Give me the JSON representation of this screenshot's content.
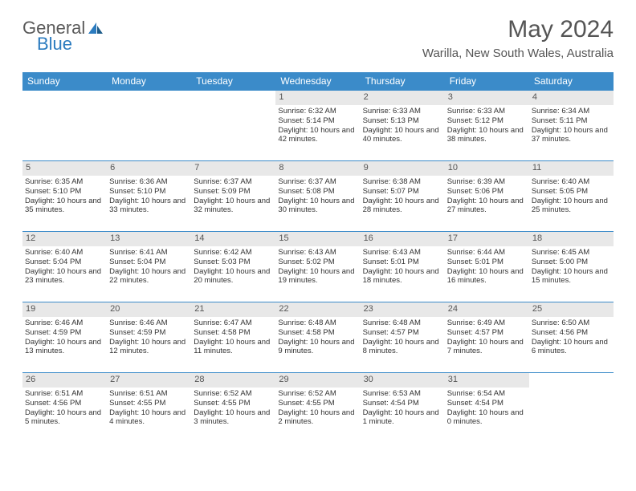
{
  "logo": {
    "text1": "General",
    "text2": "Blue"
  },
  "header": {
    "month": "May 2024",
    "location": "Warilla, New South Wales, Australia"
  },
  "colors": {
    "headerBlue": "#3b8bc9",
    "dayBg": "#e8e8e8",
    "logoBlue": "#2b7bbf"
  },
  "dayNames": [
    "Sunday",
    "Monday",
    "Tuesday",
    "Wednesday",
    "Thursday",
    "Friday",
    "Saturday"
  ],
  "firstWeekday": 3,
  "daysInMonth": 31,
  "days": {
    "1": {
      "sunrise": "6:32 AM",
      "sunset": "5:14 PM",
      "daylight": "10 hours and 42 minutes."
    },
    "2": {
      "sunrise": "6:33 AM",
      "sunset": "5:13 PM",
      "daylight": "10 hours and 40 minutes."
    },
    "3": {
      "sunrise": "6:33 AM",
      "sunset": "5:12 PM",
      "daylight": "10 hours and 38 minutes."
    },
    "4": {
      "sunrise": "6:34 AM",
      "sunset": "5:11 PM",
      "daylight": "10 hours and 37 minutes."
    },
    "5": {
      "sunrise": "6:35 AM",
      "sunset": "5:10 PM",
      "daylight": "10 hours and 35 minutes."
    },
    "6": {
      "sunrise": "6:36 AM",
      "sunset": "5:10 PM",
      "daylight": "10 hours and 33 minutes."
    },
    "7": {
      "sunrise": "6:37 AM",
      "sunset": "5:09 PM",
      "daylight": "10 hours and 32 minutes."
    },
    "8": {
      "sunrise": "6:37 AM",
      "sunset": "5:08 PM",
      "daylight": "10 hours and 30 minutes."
    },
    "9": {
      "sunrise": "6:38 AM",
      "sunset": "5:07 PM",
      "daylight": "10 hours and 28 minutes."
    },
    "10": {
      "sunrise": "6:39 AM",
      "sunset": "5:06 PM",
      "daylight": "10 hours and 27 minutes."
    },
    "11": {
      "sunrise": "6:40 AM",
      "sunset": "5:05 PM",
      "daylight": "10 hours and 25 minutes."
    },
    "12": {
      "sunrise": "6:40 AM",
      "sunset": "5:04 PM",
      "daylight": "10 hours and 23 minutes."
    },
    "13": {
      "sunrise": "6:41 AM",
      "sunset": "5:04 PM",
      "daylight": "10 hours and 22 minutes."
    },
    "14": {
      "sunrise": "6:42 AM",
      "sunset": "5:03 PM",
      "daylight": "10 hours and 20 minutes."
    },
    "15": {
      "sunrise": "6:43 AM",
      "sunset": "5:02 PM",
      "daylight": "10 hours and 19 minutes."
    },
    "16": {
      "sunrise": "6:43 AM",
      "sunset": "5:01 PM",
      "daylight": "10 hours and 18 minutes."
    },
    "17": {
      "sunrise": "6:44 AM",
      "sunset": "5:01 PM",
      "daylight": "10 hours and 16 minutes."
    },
    "18": {
      "sunrise": "6:45 AM",
      "sunset": "5:00 PM",
      "daylight": "10 hours and 15 minutes."
    },
    "19": {
      "sunrise": "6:46 AM",
      "sunset": "4:59 PM",
      "daylight": "10 hours and 13 minutes."
    },
    "20": {
      "sunrise": "6:46 AM",
      "sunset": "4:59 PM",
      "daylight": "10 hours and 12 minutes."
    },
    "21": {
      "sunrise": "6:47 AM",
      "sunset": "4:58 PM",
      "daylight": "10 hours and 11 minutes."
    },
    "22": {
      "sunrise": "6:48 AM",
      "sunset": "4:58 PM",
      "daylight": "10 hours and 9 minutes."
    },
    "23": {
      "sunrise": "6:48 AM",
      "sunset": "4:57 PM",
      "daylight": "10 hours and 8 minutes."
    },
    "24": {
      "sunrise": "6:49 AM",
      "sunset": "4:57 PM",
      "daylight": "10 hours and 7 minutes."
    },
    "25": {
      "sunrise": "6:50 AM",
      "sunset": "4:56 PM",
      "daylight": "10 hours and 6 minutes."
    },
    "26": {
      "sunrise": "6:51 AM",
      "sunset": "4:56 PM",
      "daylight": "10 hours and 5 minutes."
    },
    "27": {
      "sunrise": "6:51 AM",
      "sunset": "4:55 PM",
      "daylight": "10 hours and 4 minutes."
    },
    "28": {
      "sunrise": "6:52 AM",
      "sunset": "4:55 PM",
      "daylight": "10 hours and 3 minutes."
    },
    "29": {
      "sunrise": "6:52 AM",
      "sunset": "4:55 PM",
      "daylight": "10 hours and 2 minutes."
    },
    "30": {
      "sunrise": "6:53 AM",
      "sunset": "4:54 PM",
      "daylight": "10 hours and 1 minute."
    },
    "31": {
      "sunrise": "6:54 AM",
      "sunset": "4:54 PM",
      "daylight": "10 hours and 0 minutes."
    }
  },
  "labels": {
    "sunrise": "Sunrise: ",
    "sunset": "Sunset: ",
    "daylight": "Daylight: "
  }
}
